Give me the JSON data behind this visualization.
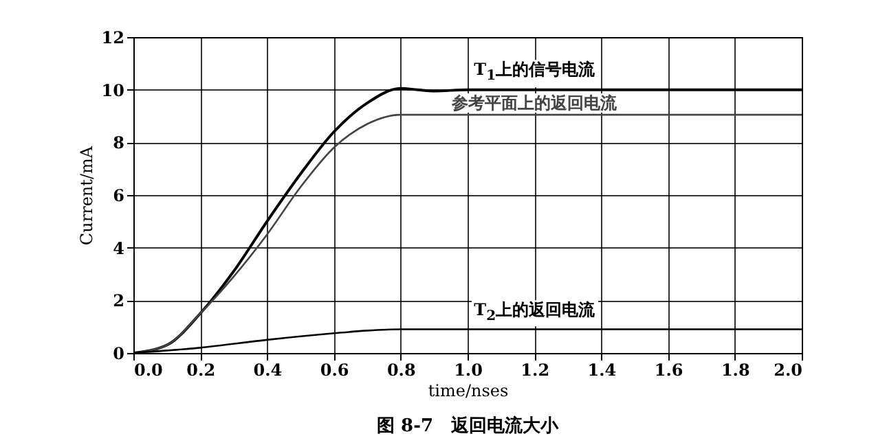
{
  "chart_data": {
    "type": "line",
    "title": "图 8-7　返回电流大小",
    "xlabel": "time/nses",
    "ylabel": "Current/mA",
    "xlim": [
      0,
      2
    ],
    "xticks": [
      {
        "value": 0,
        "label": "0.0"
      },
      {
        "value": 0.2,
        "label": "0.2"
      },
      {
        "value": 0.4,
        "label": "0.4"
      },
      {
        "value": 0.6,
        "label": "0.6"
      },
      {
        "value": 0.8,
        "label": "0.8"
      },
      {
        "value": 1,
        "label": "1.0"
      },
      {
        "value": 1.2,
        "label": "1.2"
      },
      {
        "value": 1.4,
        "label": "1.4"
      },
      {
        "value": 1.6,
        "label": "1.6"
      },
      {
        "value": 1.8,
        "label": "1.8"
      },
      {
        "value": 2,
        "label": "2.0"
      }
    ],
    "ylim": [
      0,
      12
    ],
    "yticks": [
      0,
      2,
      4,
      6,
      8,
      10,
      12
    ],
    "grid": true,
    "marker": "none",
    "line_style": "solid",
    "series": [
      {
        "name": "T$_{1}$上的信号电流",
        "color": "#000000",
        "x": [
          0,
          0.1,
          0.2,
          0.3,
          0.4,
          0.5,
          0.6,
          0.7,
          0.8,
          0.85,
          0.9,
          1.0,
          2.0
        ],
        "values": [
          0,
          0.3,
          1.5,
          3.1,
          5.0,
          6.8,
          8.4,
          9.5,
          10.05,
          10.0,
          9.95,
          10,
          10
        ]
      },
      {
        "name": "参考平面上的返回电流",
        "color": "#444444",
        "x": [
          0,
          0.1,
          0.2,
          0.3,
          0.4,
          0.5,
          0.6,
          0.7,
          0.8,
          0.9,
          2.0
        ],
        "values": [
          0,
          0.3,
          1.5,
          2.9,
          4.5,
          6.3,
          7.8,
          8.7,
          9.05,
          9.05,
          9.05
        ]
      },
      {
        "name": "T$_{2}$上的返回电流",
        "color": "#000000",
        "x": [
          0,
          0.2,
          0.4,
          0.6,
          0.7,
          0.8,
          2.0
        ],
        "values": [
          0,
          0.2,
          0.5,
          0.75,
          0.85,
          0.9,
          0.9
        ]
      }
    ]
  }
}
